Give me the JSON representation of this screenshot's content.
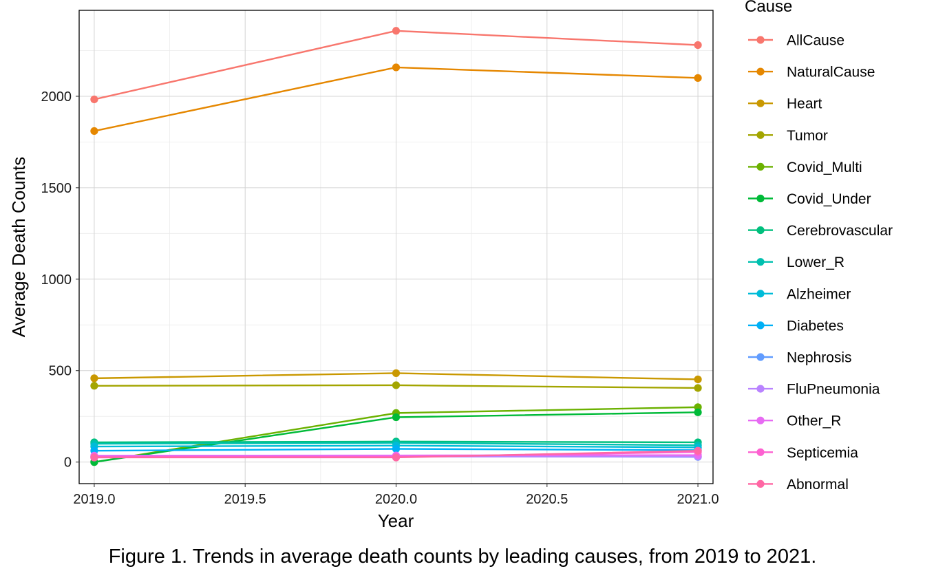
{
  "chart_data": {
    "type": "line",
    "xlabel": "Year",
    "ylabel": "Average Death Counts",
    "legend_title": "Cause",
    "caption": "Figure 1. Trends in average death counts by leading causes, from 2019 to 2021.",
    "x": [
      2019,
      2020,
      2021
    ],
    "xlim": [
      2018.95,
      2021.05
    ],
    "ylim": [
      -118,
      2470
    ],
    "x_ticks": [
      "2019.0",
      "2019.5",
      "2020.0",
      "2020.5",
      "2021.0"
    ],
    "x_tick_values": [
      2019.0,
      2019.5,
      2020.0,
      2020.5,
      2021.0
    ],
    "y_ticks": [
      "0",
      "500",
      "1000",
      "1500",
      "2000"
    ],
    "y_tick_values": [
      0,
      500,
      1000,
      1500,
      2000
    ],
    "grid": true,
    "legend_position": "right",
    "series": [
      {
        "name": "AllCause",
        "color": "#F8766D",
        "values": [
          1983,
          2358,
          2280
        ]
      },
      {
        "name": "NaturalCause",
        "color": "#E58700",
        "values": [
          1810,
          2158,
          2100
        ]
      },
      {
        "name": "Heart",
        "color": "#C99800",
        "values": [
          458,
          486,
          452
        ]
      },
      {
        "name": "Tumor",
        "color": "#A3A500",
        "values": [
          417,
          420,
          405
        ]
      },
      {
        "name": "Covid_Multi",
        "color": "#6BB100",
        "values": [
          0,
          268,
          300
        ]
      },
      {
        "name": "Covid_Under",
        "color": "#00BA38",
        "values": [
          0,
          245,
          272
        ]
      },
      {
        "name": "Cerebrovascular",
        "color": "#00BF7D",
        "values": [
          108,
          112,
          108
        ]
      },
      {
        "name": "Lower_R",
        "color": "#00C0AF",
        "values": [
          100,
          105,
          92
        ]
      },
      {
        "name": "Alzheimer",
        "color": "#00BCD8",
        "values": [
          85,
          90,
          80
        ]
      },
      {
        "name": "Diabetes",
        "color": "#00B0F6",
        "values": [
          62,
          72,
          65
        ]
      },
      {
        "name": "Nephrosis",
        "color": "#619CFF",
        "values": [
          30,
          33,
          28
        ]
      },
      {
        "name": "FluPneumonia",
        "color": "#B983FF",
        "values": [
          25,
          30,
          30
        ]
      },
      {
        "name": "Other_R",
        "color": "#E76BF3",
        "values": [
          35,
          36,
          38
        ]
      },
      {
        "name": "Septicemia",
        "color": "#FD61D1",
        "values": [
          28,
          28,
          55
        ]
      },
      {
        "name": "Abnormal",
        "color": "#FF67A4",
        "values": [
          25,
          25,
          62
        ]
      }
    ]
  }
}
